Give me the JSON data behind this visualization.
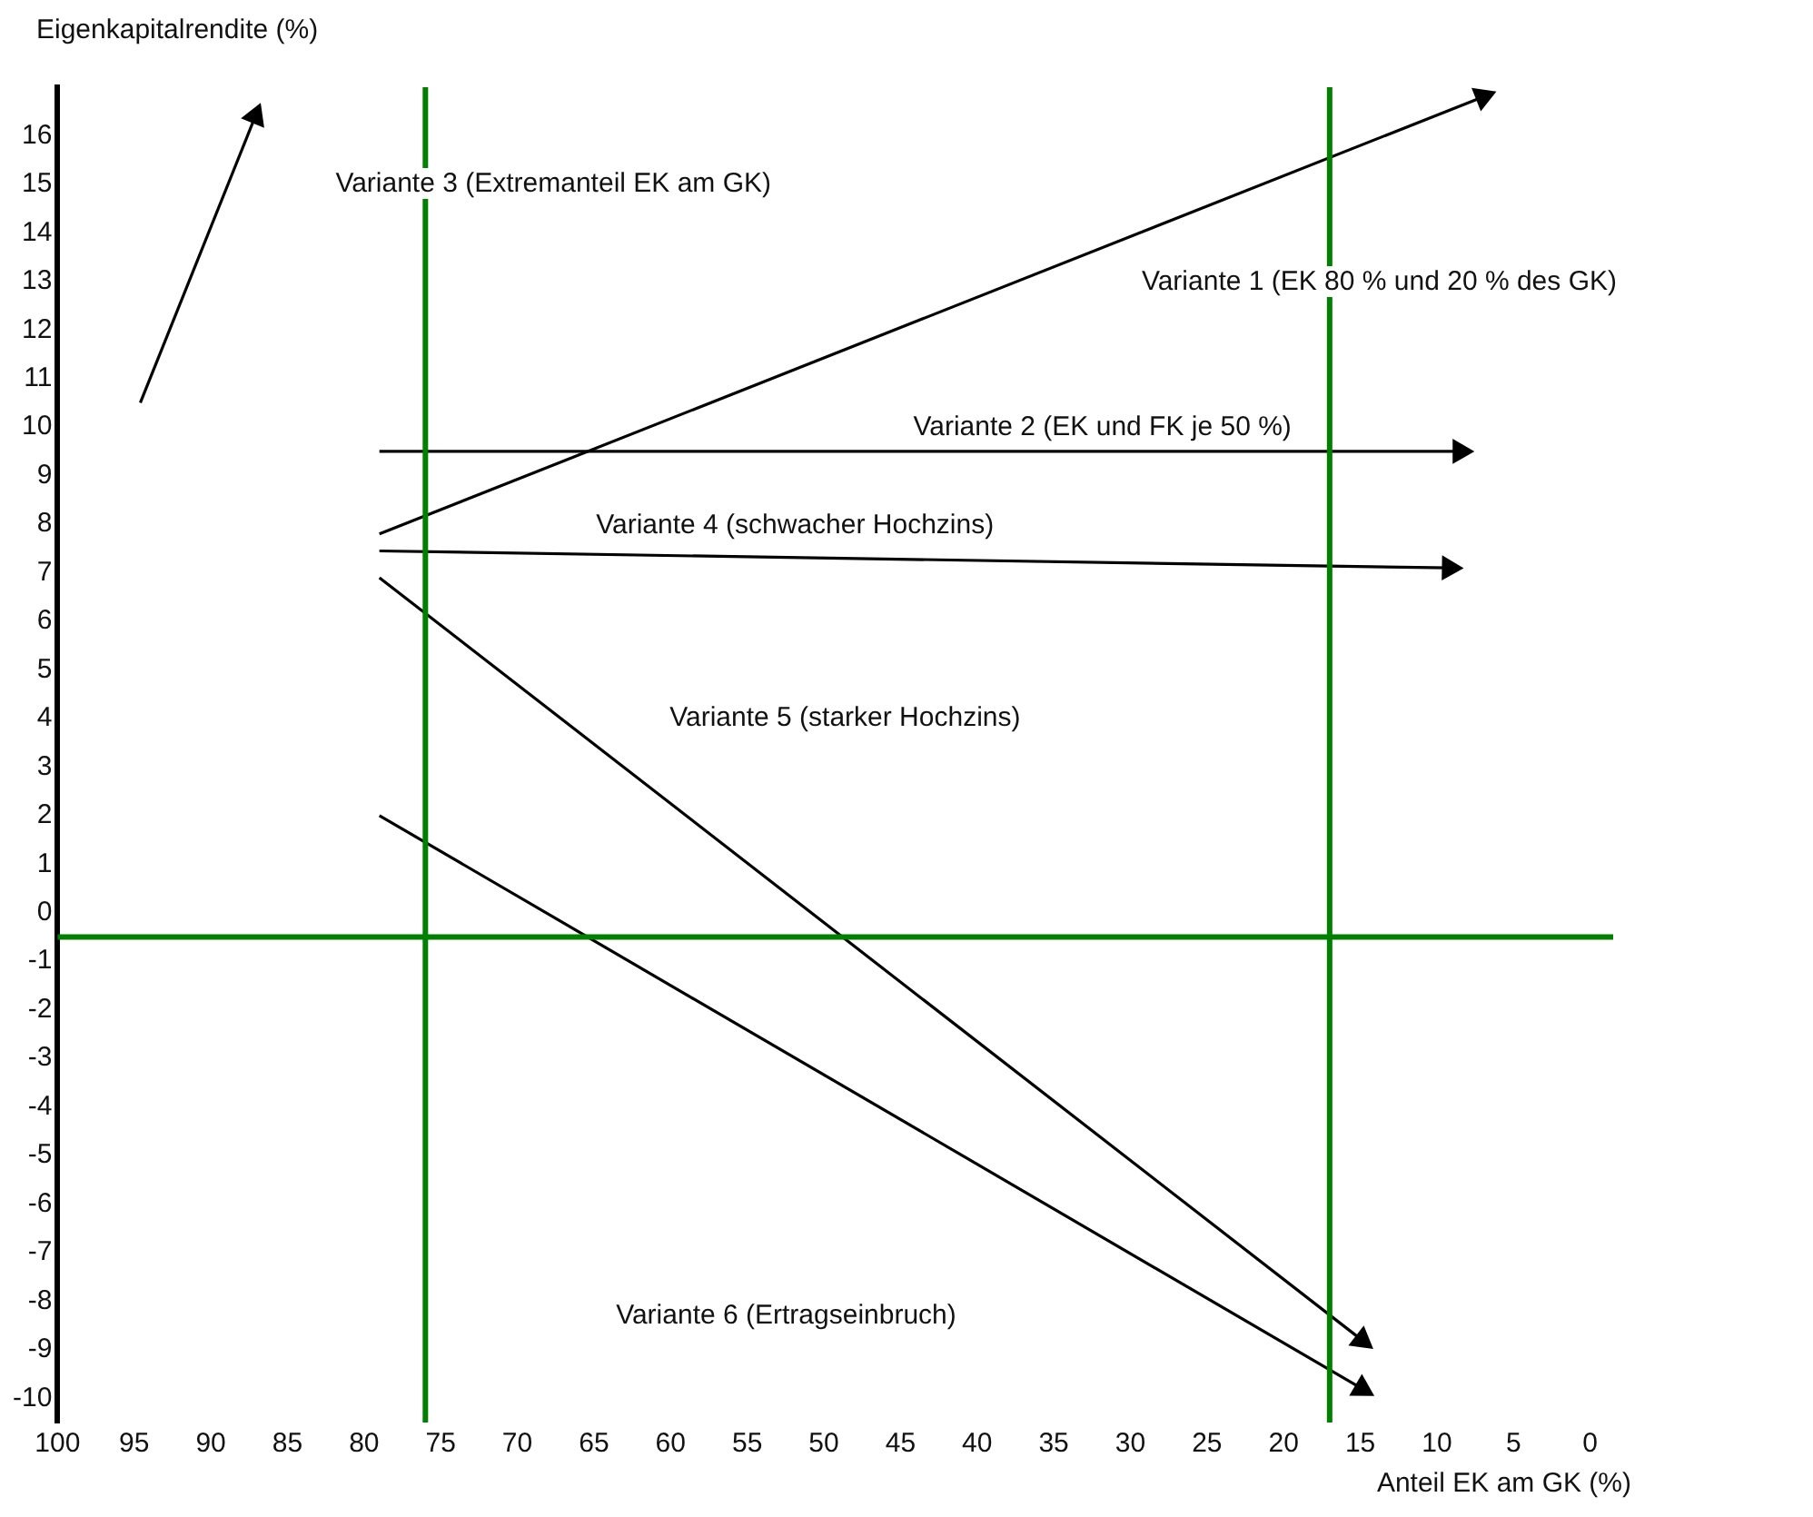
{
  "chart_data": {
    "type": "line",
    "xlabel": "Anteil EK am GK (%)",
    "ylabel": "Eigenkapitalrendite (%)",
    "xlim": [
      100,
      -1.5
    ],
    "xticks": [
      100,
      95,
      90,
      85,
      80,
      75,
      70,
      65,
      60,
      55,
      50,
      45,
      40,
      35,
      30,
      25,
      20,
      15,
      10,
      5,
      0
    ],
    "ylim": [
      -10.5,
      17
    ],
    "yticks": [
      -10,
      -9,
      -8,
      -7,
      -6,
      -5,
      -4,
      -3,
      -2,
      -1,
      0,
      1,
      2,
      3,
      4,
      5,
      6,
      7,
      8,
      9,
      10,
      11,
      12,
      13,
      14,
      15,
      16
    ],
    "legend": false,
    "marker": "triangle",
    "line_style": "solid",
    "series": [
      {
        "color": "#000000",
        "x": [
          79,
          7
        ],
        "values": [
          7.8,
          16.8
        ]
      },
      {
        "color": "#000000",
        "x": [
          79,
          8.5
        ],
        "values": [
          9.5,
          9.5
        ]
      },
      {
        "color": "#000000",
        "x": [
          94.6,
          87.1
        ],
        "values": [
          10.5,
          16.4
        ]
      },
      {
        "color": "#000000",
        "x": [
          79,
          9.2
        ],
        "values": [
          7.45,
          7.1
        ]
      },
      {
        "color": "#000000",
        "x": [
          79,
          14.9
        ],
        "values": [
          6.9,
          -8.8
        ]
      },
      {
        "color": "#000000",
        "x": [
          79,
          14.9
        ],
        "values": [
          2,
          -9.8
        ]
      }
    ],
    "annotations": [
      "Variante 3 (Extremanteil EK am GK)",
      "Variante 1 (EK 80 % und 20 % des GK)",
      "Variante 2 (EK und FK je 50 %)",
      "Variante 4 (schwacher Hochzins)",
      "Variante 5 (starker Hochzins)",
      "Variante 6 (Ertragseinbruch)"
    ],
    "ref_lines": [
      {
        "axis": "x",
        "value": 76,
        "color": "#008000"
      },
      {
        "axis": "x",
        "value": 17,
        "color": "#008000"
      },
      {
        "axis": "y",
        "value": -0.5,
        "color": "#008000"
      }
    ]
  }
}
